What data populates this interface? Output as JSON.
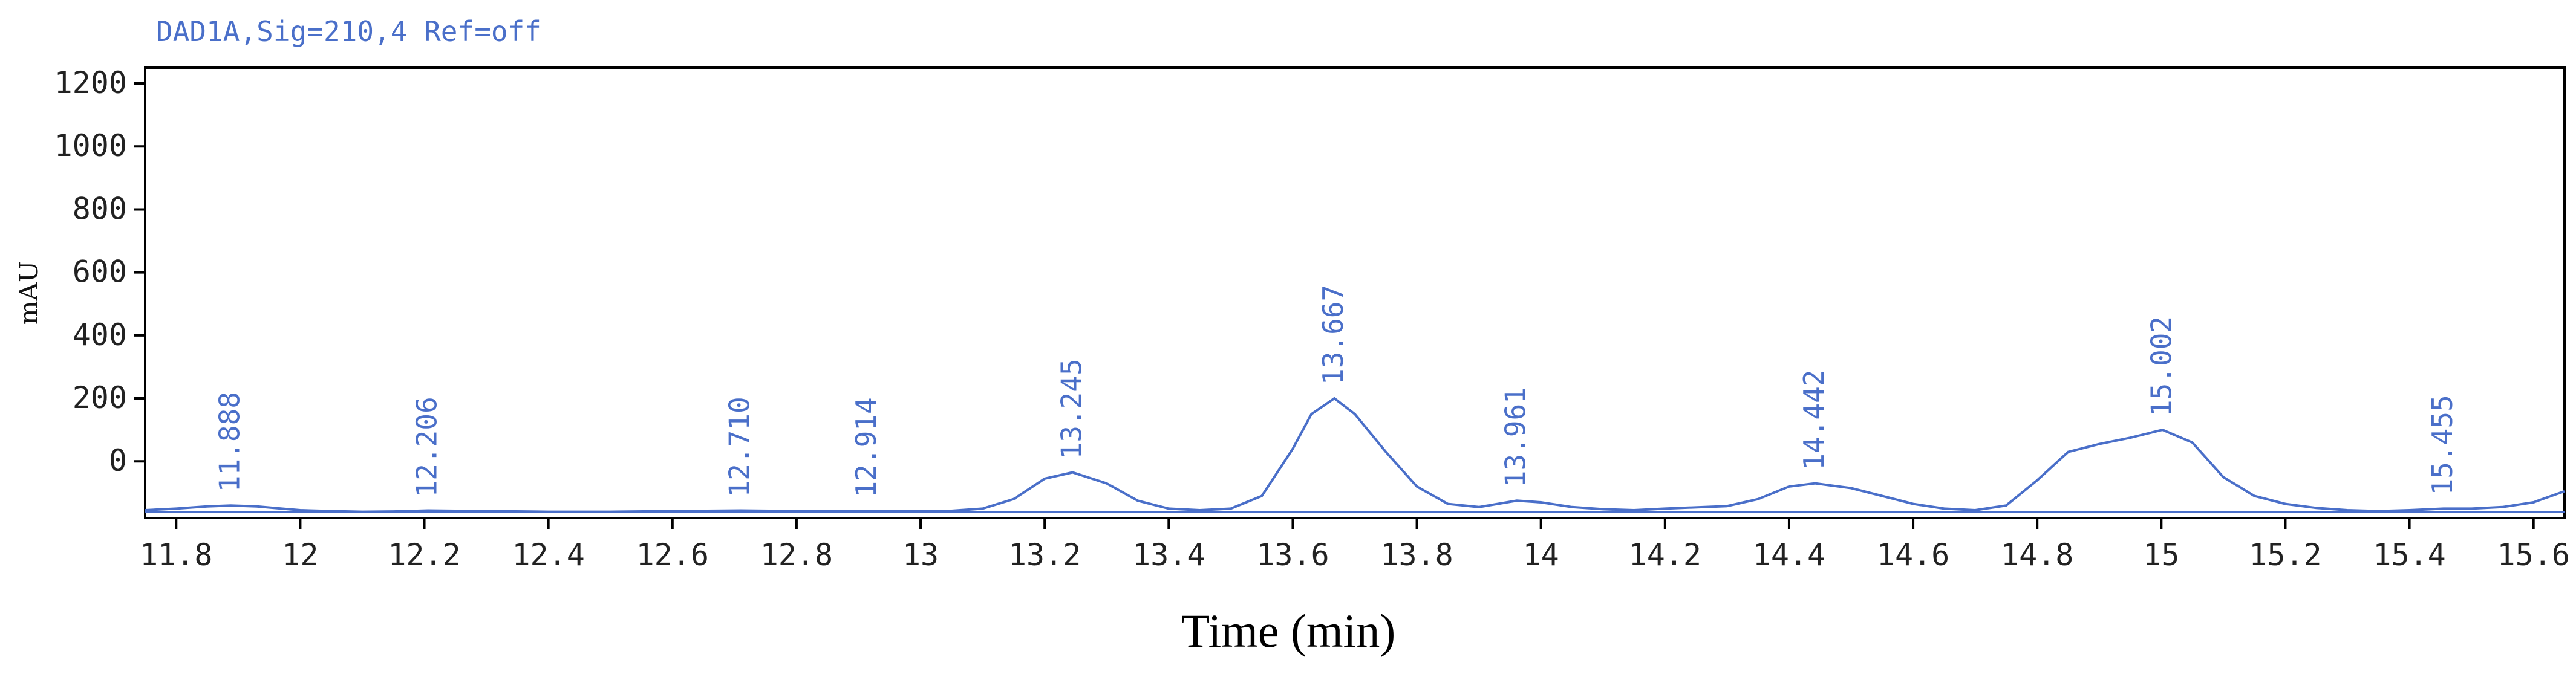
{
  "chart_data": {
    "type": "line",
    "title": "DAD1A,Sig=210,4  Ref=off",
    "xlabel": "Time (min)",
    "ylabel": "mAU",
    "xlim": [
      11.75,
      15.65
    ],
    "ylim": [
      -180,
      1250
    ],
    "x_ticks": [
      11.8,
      12.0,
      12.2,
      12.4,
      12.6,
      12.8,
      13.0,
      13.2,
      13.4,
      13.6,
      13.8,
      14.0,
      14.2,
      14.4,
      14.6,
      14.8,
      15.0,
      15.2,
      15.4,
      15.6
    ],
    "x_tick_labels": [
      "11.8",
      "12",
      "12.2",
      "12.4",
      "12.6",
      "12.8",
      "13",
      "13.2",
      "13.4",
      "13.6",
      "13.8",
      "14",
      "14.2",
      "14.4",
      "14.6",
      "14.8",
      "15",
      "15.2",
      "15.4",
      "15.6"
    ],
    "y_ticks": [
      0,
      200,
      400,
      600,
      800,
      1000,
      1200
    ],
    "y_tick_labels": [
      "0",
      "200",
      "400",
      "600",
      "800",
      "1000",
      "1200"
    ],
    "baseline": -160,
    "grid": false,
    "series": [
      {
        "color": "#4a6fc9",
        "x": [
          11.75,
          11.8,
          11.85,
          11.888,
          11.93,
          11.97,
          12.0,
          12.05,
          12.1,
          12.15,
          12.206,
          12.3,
          12.4,
          12.5,
          12.6,
          12.71,
          12.8,
          12.914,
          13.0,
          13.05,
          13.1,
          13.15,
          13.2,
          13.245,
          13.3,
          13.35,
          13.4,
          13.45,
          13.5,
          13.55,
          13.6,
          13.63,
          13.667,
          13.7,
          13.75,
          13.8,
          13.85,
          13.9,
          13.961,
          14.0,
          14.05,
          14.1,
          14.15,
          14.2,
          14.3,
          14.35,
          14.4,
          14.442,
          14.5,
          14.55,
          14.6,
          14.65,
          14.7,
          14.75,
          14.8,
          14.85,
          14.9,
          14.95,
          15.002,
          15.05,
          15.1,
          15.15,
          15.2,
          15.25,
          15.3,
          15.35,
          15.4,
          15.455,
          15.5,
          15.55,
          15.6,
          15.65
        ],
        "y": [
          -155,
          -150,
          -143,
          -140,
          -143,
          -150,
          -155,
          -158,
          -160,
          -159,
          -156,
          -158,
          -160,
          -160,
          -158,
          -156,
          -158,
          -158,
          -158,
          -157,
          -150,
          -120,
          -55,
          -35,
          -70,
          -125,
          -150,
          -155,
          -150,
          -110,
          40,
          150,
          200,
          150,
          30,
          -80,
          -135,
          -145,
          -125,
          -130,
          -145,
          -152,
          -155,
          -150,
          -142,
          -120,
          -80,
          -70,
          -85,
          -110,
          -135,
          -150,
          -155,
          -140,
          -60,
          30,
          55,
          75,
          100,
          60,
          -50,
          -110,
          -135,
          -148,
          -155,
          -158,
          -155,
          -150,
          -150,
          -145,
          -130,
          -95
        ]
      }
    ],
    "peaks": [
      {
        "label": "11.888",
        "x": 11.888,
        "y": -140
      },
      {
        "label": "12.206",
        "x": 12.206,
        "y": -156
      },
      {
        "label": "12.710",
        "x": 12.71,
        "y": -156
      },
      {
        "label": "12.914",
        "x": 12.914,
        "y": -158
      },
      {
        "label": "13.245",
        "x": 13.245,
        "y": -35
      },
      {
        "label": "13.667",
        "x": 13.667,
        "y": 200
      },
      {
        "label": "13.961",
        "x": 13.961,
        "y": -125
      },
      {
        "label": "14.442",
        "x": 14.442,
        "y": -70
      },
      {
        "label": "15.002",
        "x": 15.002,
        "y": 100
      },
      {
        "label": "15.455",
        "x": 15.455,
        "y": -150
      }
    ]
  }
}
